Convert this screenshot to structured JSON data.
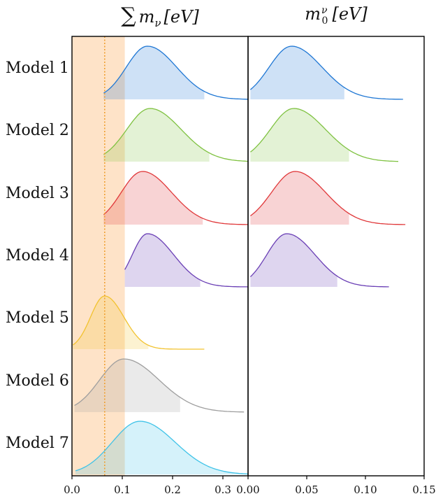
{
  "chart_data": {
    "type": "area",
    "row_labels": [
      "Model 1",
      "Model 2",
      "Model 3",
      "Model 4",
      "Model 5",
      "Model 6",
      "Model 7"
    ],
    "series_colors": [
      "#1f77d4",
      "#7fc241",
      "#e0383a",
      "#6a3fb5",
      "#f2c22e",
      "#9e9e9e",
      "#3fc3e8"
    ],
    "panels": [
      {
        "title": "∑ m_ν [eV]",
        "xlim": [
          0.0,
          0.35
        ],
        "xticks": [
          0.0,
          0.1,
          0.2,
          0.3
        ],
        "xtick_labels": [
          "0.0",
          "0.1",
          "0.2",
          "0.3"
        ],
        "band": [
          0.0,
          0.105
        ],
        "band_color": "#fdd9b5",
        "vline": 0.065,
        "vline_color": "#f0a030",
        "series": [
          {
            "peak": 0.15,
            "sigma_left": 0.042,
            "sigma_right": 0.058,
            "x_start": 0.063,
            "x_end": 0.35,
            "fill_start": 0.063,
            "fill_end": 0.263
          },
          {
            "peak": 0.155,
            "sigma_left": 0.046,
            "sigma_right": 0.062,
            "x_start": 0.063,
            "x_end": 0.35,
            "fill_start": 0.063,
            "fill_end": 0.273
          },
          {
            "peak": 0.14,
            "sigma_left": 0.042,
            "sigma_right": 0.058,
            "x_start": 0.063,
            "x_end": 0.35,
            "fill_start": 0.063,
            "fill_end": 0.26
          },
          {
            "peak": 0.15,
            "sigma_left": 0.03,
            "sigma_right": 0.052,
            "x_start": 0.105,
            "x_end": 0.35,
            "fill_start": 0.105,
            "fill_end": 0.255
          },
          {
            "peak": 0.065,
            "sigma_left": 0.028,
            "sigma_right": 0.038,
            "x_start": 0.002,
            "x_end": 0.263,
            "fill_start": 0.002,
            "fill_end": 0.152
          },
          {
            "peak": 0.103,
            "sigma_left": 0.048,
            "sigma_right": 0.07,
            "x_start": 0.005,
            "x_end": 0.342,
            "fill_start": 0.005,
            "fill_end": 0.215
          },
          {
            "peak": 0.135,
            "sigma_left": 0.055,
            "sigma_right": 0.07,
            "x_start": 0.007,
            "x_end": 0.35,
            "fill_start": 0.007,
            "fill_end": 0.35
          }
        ]
      },
      {
        "title": "m_0^ν [eV]",
        "xlim": [
          0.0,
          0.15
        ],
        "xticks": [
          0.0,
          0.05,
          0.1,
          0.15
        ],
        "xtick_labels": [
          "0.00",
          "0.05",
          "0.10",
          "0.15"
        ],
        "series": [
          {
            "peak": 0.037,
            "sigma_left": 0.019,
            "sigma_right": 0.026,
            "x_start": 0.002,
            "x_end": 0.132,
            "fill_start": 0.002,
            "fill_end": 0.082
          },
          {
            "peak": 0.039,
            "sigma_left": 0.02,
            "sigma_right": 0.027,
            "x_start": 0.002,
            "x_end": 0.128,
            "fill_start": 0.002,
            "fill_end": 0.086
          },
          {
            "peak": 0.04,
            "sigma_left": 0.02,
            "sigma_right": 0.026,
            "x_start": 0.002,
            "x_end": 0.134,
            "fill_start": 0.002,
            "fill_end": 0.086
          },
          {
            "peak": 0.033,
            "sigma_left": 0.017,
            "sigma_right": 0.024,
            "x_start": 0.002,
            "x_end": 0.12,
            "fill_start": 0.002,
            "fill_end": 0.076
          }
        ]
      }
    ]
  }
}
